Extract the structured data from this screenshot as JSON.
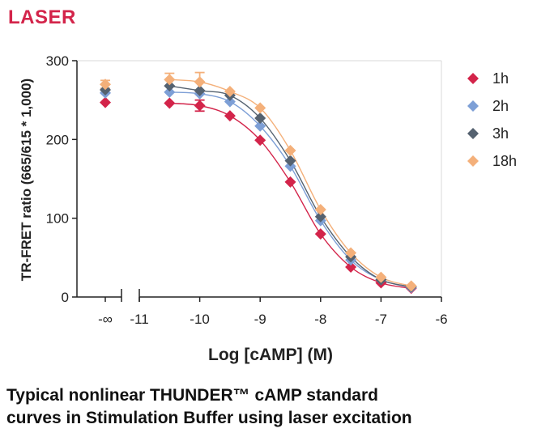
{
  "header": {
    "title": "LASER"
  },
  "caption": {
    "line1": "Typical nonlinear THUNDER™ cAMP standard",
    "line2": "curves in Stimulation Buffer using laser excitation"
  },
  "chart_data": {
    "type": "scatter",
    "title": "",
    "xlabel": "Log [cAMP] (M)",
    "ylabel": "TR-FRET ratio (665/615 * 1,000)",
    "xlim": [
      -11,
      -6
    ],
    "ylim": [
      0,
      300
    ],
    "x_break_label": "-∞",
    "x_ticks": [
      -11,
      -10,
      -9,
      -8,
      -7,
      -6
    ],
    "x_tick_labels": [
      "-11",
      "-10",
      "-9",
      "-8",
      "-7",
      "-6"
    ],
    "y_ticks": [
      0,
      100,
      200,
      300
    ],
    "y_tick_labels": [
      "0",
      "100",
      "200",
      "300"
    ],
    "grid": false,
    "legend_position": "right",
    "x": [
      "-∞",
      -10.5,
      -10,
      -9.5,
      -9,
      -8.5,
      -8,
      -7.5,
      -7,
      -6.5
    ],
    "series": [
      {
        "name": "1h",
        "color": "#d3244a",
        "values": [
          247,
          246,
          243,
          230,
          199,
          146,
          80,
          38,
          18,
          11
        ],
        "errors": [
          0,
          0,
          7,
          0,
          0,
          0,
          0,
          0,
          0,
          0
        ]
      },
      {
        "name": "2h",
        "color": "#7d9fd6",
        "values": [
          259,
          260,
          258,
          248,
          217,
          166,
          97,
          47,
          22,
          12
        ],
        "errors": [
          0,
          0,
          0,
          0,
          0,
          0,
          0,
          0,
          0,
          0
        ]
      },
      {
        "name": "3h",
        "color": "#556270",
        "values": [
          263,
          268,
          262,
          256,
          227,
          173,
          102,
          51,
          22,
          13
        ],
        "errors": [
          0,
          0,
          0,
          0,
          0,
          0,
          0,
          0,
          0,
          0
        ]
      },
      {
        "name": "18h",
        "color": "#f4b07a",
        "values": [
          270,
          276,
          273,
          261,
          240,
          186,
          111,
          56,
          25,
          14
        ],
        "errors": [
          5,
          8,
          12,
          0,
          0,
          0,
          0,
          0,
          0,
          0
        ]
      }
    ]
  }
}
